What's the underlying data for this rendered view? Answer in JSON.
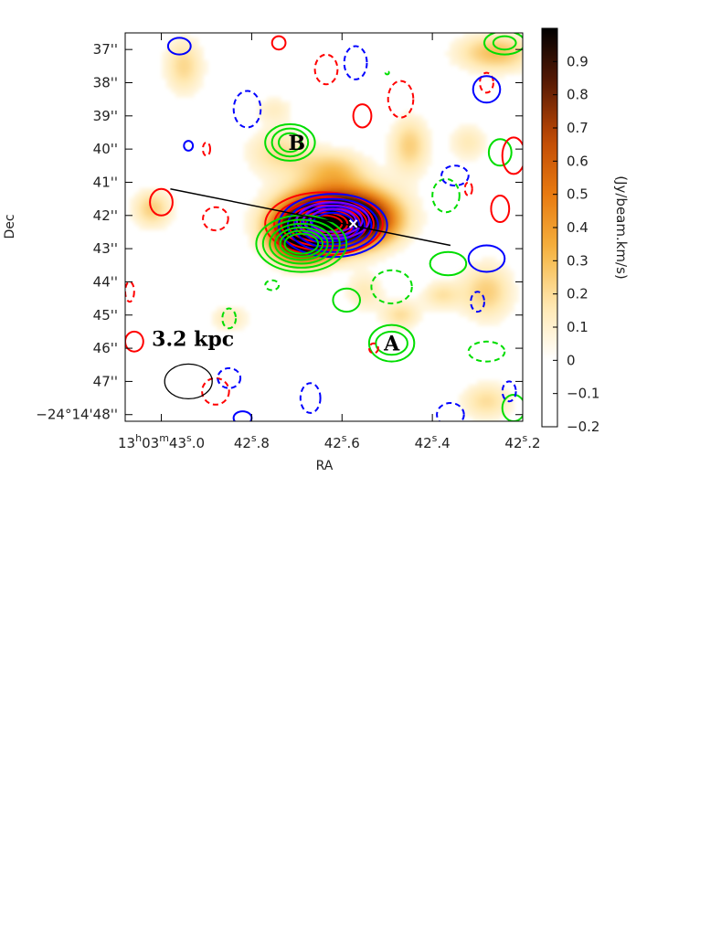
{
  "chart_data": {
    "type": "heatmap",
    "title": "",
    "xlabel": "RA",
    "ylabel": "Dec",
    "x_ticks": [
      {
        "value": 43.0,
        "prefix": "13",
        "sup1": "h",
        "mid": "03",
        "sup2": "m",
        "main": "43",
        "sup3": "s",
        "tail": ".0"
      },
      {
        "value": 42.8,
        "prefix": "",
        "sup1": "",
        "mid": "",
        "sup2": "",
        "main": "42",
        "sup3": "s",
        "tail": ".8"
      },
      {
        "value": 42.6,
        "prefix": "",
        "sup1": "",
        "mid": "",
        "sup2": "",
        "main": "42",
        "sup3": "s",
        "tail": ".6"
      },
      {
        "value": 42.4,
        "prefix": "",
        "sup1": "",
        "mid": "",
        "sup2": "",
        "main": "42",
        "sup3": "s",
        "tail": ".4"
      },
      {
        "value": 42.2,
        "prefix": "",
        "sup1": "",
        "mid": "",
        "sup2": "",
        "main": "42",
        "sup3": "s",
        "tail": ".2"
      }
    ],
    "y_ticks": [
      {
        "value": 37,
        "label": "37''"
      },
      {
        "value": 38,
        "label": "38''"
      },
      {
        "value": 39,
        "label": "39''"
      },
      {
        "value": 40,
        "label": "40''"
      },
      {
        "value": 41,
        "label": "41''"
      },
      {
        "value": 42,
        "label": "42''"
      },
      {
        "value": 43,
        "label": "43''"
      },
      {
        "value": 44,
        "label": "44''"
      },
      {
        "value": 45,
        "label": "45''"
      },
      {
        "value": 46,
        "label": "46''"
      },
      {
        "value": 47,
        "label": "47''"
      },
      {
        "value": 48,
        "label": "−24°14'48''"
      }
    ],
    "xlim": [
      43.08,
      42.2
    ],
    "ylim": [
      48.2,
      36.5
    ],
    "colorbar": {
      "label": "(Jy/beam.km/s)",
      "range": [
        -0.2,
        1.0
      ],
      "ticks": [
        "0.9",
        "0.8",
        "0.7",
        "0.6",
        "0.5",
        "0.4",
        "0.3",
        "0.2",
        "0.1",
        "0",
        "−0.1",
        "−0.2"
      ],
      "tick_values": [
        0.9,
        0.8,
        0.7,
        0.6,
        0.5,
        0.4,
        0.3,
        0.2,
        0.1,
        0.0,
        -0.1,
        -0.2
      ]
    },
    "annotations": [
      {
        "label": "B",
        "ra": 42.7,
        "dec": 39.8
      },
      {
        "label": "A",
        "ra": 42.49,
        "dec": 45.85
      },
      {
        "label": "3.2 kpc",
        "ra": 42.93,
        "dec": 45.95
      }
    ],
    "beam": {
      "ra": 42.94,
      "dec": 47.0
    },
    "slit": {
      "from": {
        "ra": 42.98,
        "dec": 41.2
      },
      "to": {
        "ra": 42.36,
        "dec": 42.9
      }
    },
    "center_marker": {
      "ra": 42.575,
      "dec": 42.25
    },
    "emission": [
      {
        "ra": 42.61,
        "dec": 42.0,
        "amp": 1.0,
        "sx": 0.08,
        "sy": 0.6
      },
      {
        "ra": 42.69,
        "dec": 42.75,
        "amp": 0.9,
        "sx": 0.04,
        "sy": 0.45
      },
      {
        "ra": 42.66,
        "dec": 42.4,
        "amp": 0.7,
        "sx": 0.06,
        "sy": 0.5
      },
      {
        "ra": 42.56,
        "dec": 42.2,
        "amp": 0.5,
        "sx": 0.05,
        "sy": 0.45
      },
      {
        "ra": 42.74,
        "dec": 40.1,
        "amp": 0.2,
        "sx": 0.05,
        "sy": 0.5
      },
      {
        "ra": 42.45,
        "dec": 39.9,
        "amp": 0.25,
        "sx": 0.03,
        "sy": 0.6
      },
      {
        "ra": 42.26,
        "dec": 37.1,
        "amp": 0.3,
        "sx": 0.06,
        "sy": 0.4
      },
      {
        "ra": 42.95,
        "dec": 37.5,
        "amp": 0.22,
        "sx": 0.03,
        "sy": 0.6
      },
      {
        "ra": 42.62,
        "dec": 40.6,
        "amp": 0.25,
        "sx": 0.05,
        "sy": 0.4
      },
      {
        "ra": 42.28,
        "dec": 44.3,
        "amp": 0.25,
        "sx": 0.04,
        "sy": 0.6
      },
      {
        "ra": 42.28,
        "dec": 47.6,
        "amp": 0.2,
        "sx": 0.04,
        "sy": 0.4
      },
      {
        "ra": 43.02,
        "dec": 41.8,
        "amp": 0.25,
        "sx": 0.03,
        "sy": 0.4
      },
      {
        "ra": 42.47,
        "dec": 45.0,
        "amp": 0.2,
        "sx": 0.03,
        "sy": 0.3
      },
      {
        "ra": 42.38,
        "dec": 44.4,
        "amp": 0.18,
        "sx": 0.03,
        "sy": 0.3
      },
      {
        "ra": 42.85,
        "dec": 45.1,
        "amp": 0.15,
        "sx": 0.03,
        "sy": 0.3
      },
      {
        "ra": 42.55,
        "dec": 44.3,
        "amp": 0.15,
        "sx": 0.03,
        "sy": 0.4
      },
      {
        "ra": 42.75,
        "dec": 38.8,
        "amp": 0.12,
        "sx": 0.03,
        "sy": 0.3
      },
      {
        "ra": 42.32,
        "dec": 39.8,
        "amp": 0.15,
        "sx": 0.03,
        "sy": 0.4
      }
    ],
    "contour_sets": [
      {
        "name": "red-core",
        "color": "#ff0000",
        "dashed": false,
        "ra": 42.64,
        "dec": 42.25,
        "rx": [
          0.13,
          0.11,
          0.095,
          0.08,
          0.066,
          0.052,
          0.04
        ],
        "ry": [
          0.95,
          0.8,
          0.67,
          0.55,
          0.44,
          0.34,
          0.25
        ]
      },
      {
        "name": "blue-core",
        "color": "#0000ff",
        "dashed": false,
        "ra": 42.62,
        "dec": 42.3,
        "rx": [
          0.12,
          0.1,
          0.085,
          0.07,
          0.058,
          0.047
        ],
        "ry": [
          0.95,
          0.8,
          0.68,
          0.57,
          0.47,
          0.38
        ]
      },
      {
        "name": "purple-core",
        "color": "#8000ff",
        "dashed": false,
        "ra": 42.62,
        "dec": 42.15,
        "rx": [
          0.08,
          0.065,
          0.05
        ],
        "ry": [
          0.55,
          0.45,
          0.35
        ]
      },
      {
        "name": "green-core",
        "color": "#00dd00",
        "dashed": false,
        "ra": 42.69,
        "dec": 42.85,
        "rx": [
          0.1,
          0.085,
          0.07,
          0.058,
          0.047,
          0.037
        ],
        "ry": [
          0.85,
          0.72,
          0.6,
          0.49,
          0.39,
          0.3
        ]
      },
      {
        "name": "green-B",
        "color": "#00dd00",
        "dashed": false,
        "ra": 42.715,
        "dec": 39.8,
        "rx": [
          0.055,
          0.04,
          0.025
        ],
        "ry": [
          0.55,
          0.42,
          0.28
        ]
      },
      {
        "name": "green-A",
        "color": "#00dd00",
        "dashed": false,
        "ra": 42.49,
        "dec": 45.85,
        "rx": [
          0.05,
          0.035
        ],
        "ry": [
          0.55,
          0.35
        ]
      },
      {
        "name": "green-1",
        "color": "#00dd00",
        "dashed": false,
        "ra": 42.365,
        "dec": 43.45,
        "rx": [
          0.04
        ],
        "ry": [
          0.35
        ]
      },
      {
        "name": "green-2",
        "color": "#00dd00",
        "dashed": false,
        "ra": 42.59,
        "dec": 44.55,
        "rx": [
          0.03
        ],
        "ry": [
          0.35
        ]
      },
      {
        "name": "green-3",
        "color": "#00dd00",
        "dashed": false,
        "ra": 42.25,
        "dec": 40.1,
        "rx": [
          0.025
        ],
        "ry": [
          0.4
        ]
      },
      {
        "name": "green-4",
        "color": "#00dd00",
        "dashed": false,
        "ra": 42.24,
        "dec": 36.8,
        "rx": [
          0.045,
          0.025
        ],
        "ry": [
          0.35,
          0.2
        ]
      },
      {
        "name": "green-5",
        "color": "#00dd00",
        "dashed": false,
        "ra": 42.22,
        "dec": 47.8,
        "rx": [
          0.025
        ],
        "ry": [
          0.4
        ]
      },
      {
        "name": "green-d1",
        "color": "#00dd00",
        "dashed": true,
        "ra": 42.49,
        "dec": 44.15,
        "rx": [
          0.045
        ],
        "ry": [
          0.5
        ]
      },
      {
        "name": "green-d2",
        "color": "#00dd00",
        "dashed": true,
        "ra": 42.37,
        "dec": 41.4,
        "rx": [
          0.03
        ],
        "ry": [
          0.5
        ]
      },
      {
        "name": "green-d3",
        "color": "#00dd00",
        "dashed": true,
        "ra": 42.85,
        "dec": 45.1,
        "rx": [
          0.015
        ],
        "ry": [
          0.3
        ]
      },
      {
        "name": "green-d4",
        "color": "#00dd00",
        "dashed": true,
        "ra": 42.755,
        "dec": 44.1,
        "rx": [
          0.015
        ],
        "ry": [
          0.15
        ]
      },
      {
        "name": "green-d5",
        "color": "#00dd00",
        "dashed": true,
        "ra": 42.28,
        "dec": 46.1,
        "rx": [
          0.04
        ],
        "ry": [
          0.3
        ]
      },
      {
        "name": "green-d6",
        "color": "#00dd00",
        "dashed": true,
        "ra": 42.5,
        "dec": 37.7,
        "rx": [
          0.004
        ],
        "ry": [
          0.05
        ]
      },
      {
        "name": "red-1",
        "color": "#ff0000",
        "dashed": false,
        "ra": 42.555,
        "dec": 39.0,
        "rx": [
          0.02
        ],
        "ry": [
          0.35
        ]
      },
      {
        "name": "red-2",
        "color": "#ff0000",
        "dashed": false,
        "ra": 43.0,
        "dec": 41.6,
        "rx": [
          0.025
        ],
        "ry": [
          0.4
        ]
      },
      {
        "name": "red-3",
        "color": "#ff0000",
        "dashed": false,
        "ra": 42.25,
        "dec": 41.8,
        "rx": [
          0.02
        ],
        "ry": [
          0.4
        ]
      },
      {
        "name": "red-4",
        "color": "#ff0000",
        "dashed": false,
        "ra": 42.22,
        "dec": 40.2,
        "rx": [
          0.025
        ],
        "ry": [
          0.55
        ]
      },
      {
        "name": "red-5",
        "color": "#ff0000",
        "dashed": false,
        "ra": 43.06,
        "dec": 45.8,
        "rx": [
          0.02
        ],
        "ry": [
          0.3
        ]
      },
      {
        "name": "red-6",
        "color": "#ff0000",
        "dashed": false,
        "ra": 42.74,
        "dec": 36.8,
        "rx": [
          0.015
        ],
        "ry": [
          0.2
        ]
      },
      {
        "name": "red-d1",
        "color": "#ff0000",
        "dashed": true,
        "ra": 42.635,
        "dec": 37.6,
        "rx": [
          0.025
        ],
        "ry": [
          0.45
        ]
      },
      {
        "name": "red-d2",
        "color": "#ff0000",
        "dashed": true,
        "ra": 42.47,
        "dec": 38.5,
        "rx": [
          0.028
        ],
        "ry": [
          0.55
        ]
      },
      {
        "name": "red-d3",
        "color": "#ff0000",
        "dashed": true,
        "ra": 42.88,
        "dec": 42.1,
        "rx": [
          0.028
        ],
        "ry": [
          0.35
        ]
      },
      {
        "name": "red-d4",
        "color": "#ff0000",
        "dashed": true,
        "ra": 42.88,
        "dec": 47.3,
        "rx": [
          0.03
        ],
        "ry": [
          0.4
        ]
      },
      {
        "name": "red-d5",
        "color": "#ff0000",
        "dashed": true,
        "ra": 42.9,
        "dec": 40.0,
        "rx": [
          0.008
        ],
        "ry": [
          0.2
        ]
      },
      {
        "name": "red-d6",
        "color": "#ff0000",
        "dashed": true,
        "ra": 43.07,
        "dec": 44.3,
        "rx": [
          0.01
        ],
        "ry": [
          0.3
        ]
      },
      {
        "name": "red-d7",
        "color": "#ff0000",
        "dashed": true,
        "ra": 42.53,
        "dec": 46.0,
        "rx": [
          0.01
        ],
        "ry": [
          0.15
        ]
      },
      {
        "name": "red-d8",
        "color": "#ff0000",
        "dashed": true,
        "ra": 42.28,
        "dec": 38.0,
        "rx": [
          0.015
        ],
        "ry": [
          0.3
        ]
      },
      {
        "name": "red-d9",
        "color": "#ff0000",
        "dashed": true,
        "ra": 42.32,
        "dec": 41.2,
        "rx": [
          0.008
        ],
        "ry": [
          0.2
        ]
      },
      {
        "name": "blue-1",
        "color": "#0000ff",
        "dashed": false,
        "ra": 42.28,
        "dec": 38.2,
        "rx": [
          0.03
        ],
        "ry": [
          0.4
        ]
      },
      {
        "name": "blue-2",
        "color": "#0000ff",
        "dashed": false,
        "ra": 42.28,
        "dec": 43.3,
        "rx": [
          0.04
        ],
        "ry": [
          0.4
        ]
      },
      {
        "name": "blue-3",
        "color": "#0000ff",
        "dashed": false,
        "ra": 42.96,
        "dec": 36.9,
        "rx": [
          0.025
        ],
        "ry": [
          0.25
        ]
      },
      {
        "name": "blue-4",
        "color": "#0000ff",
        "dashed": false,
        "ra": 42.94,
        "dec": 39.9,
        "rx": [
          0.01
        ],
        "ry": [
          0.15
        ]
      },
      {
        "name": "blue-5",
        "color": "#0000ff",
        "dashed": false,
        "ra": 42.82,
        "dec": 48.1,
        "rx": [
          0.02
        ],
        "ry": [
          0.2
        ]
      },
      {
        "name": "blue-d1",
        "color": "#0000ff",
        "dashed": true,
        "ra": 42.81,
        "dec": 38.8,
        "rx": [
          0.03
        ],
        "ry": [
          0.55
        ]
      },
      {
        "name": "blue-d2",
        "color": "#0000ff",
        "dashed": true,
        "ra": 42.57,
        "dec": 37.4,
        "rx": [
          0.025
        ],
        "ry": [
          0.5
        ]
      },
      {
        "name": "blue-d3",
        "color": "#0000ff",
        "dashed": true,
        "ra": 42.85,
        "dec": 46.9,
        "rx": [
          0.025
        ],
        "ry": [
          0.3
        ]
      },
      {
        "name": "blue-d4",
        "color": "#0000ff",
        "dashed": true,
        "ra": 42.67,
        "dec": 47.5,
        "rx": [
          0.022
        ],
        "ry": [
          0.45
        ]
      },
      {
        "name": "blue-d5",
        "color": "#0000ff",
        "dashed": true,
        "ra": 42.36,
        "dec": 48.0,
        "rx": [
          0.03
        ],
        "ry": [
          0.35
        ]
      },
      {
        "name": "blue-d6",
        "color": "#0000ff",
        "dashed": true,
        "ra": 42.3,
        "dec": 44.6,
        "rx": [
          0.015
        ],
        "ry": [
          0.3
        ]
      },
      {
        "name": "blue-d7",
        "color": "#0000ff",
        "dashed": true,
        "ra": 42.35,
        "dec": 40.8,
        "rx": [
          0.03
        ],
        "ry": [
          0.3
        ]
      },
      {
        "name": "blue-d8",
        "color": "#0000ff",
        "dashed": true,
        "ra": 42.23,
        "dec": 47.3,
        "rx": [
          0.015
        ],
        "ry": [
          0.3
        ]
      }
    ],
    "colors": {
      "red": "#ff0000",
      "blue": "#0000ff",
      "purple": "#8000ff",
      "green": "#00dd00",
      "colormap": [
        "#ffffff",
        "#ffe8b0",
        "#f5b340",
        "#e87a10",
        "#c04a05",
        "#5a1a05",
        "#000000"
      ]
    }
  }
}
